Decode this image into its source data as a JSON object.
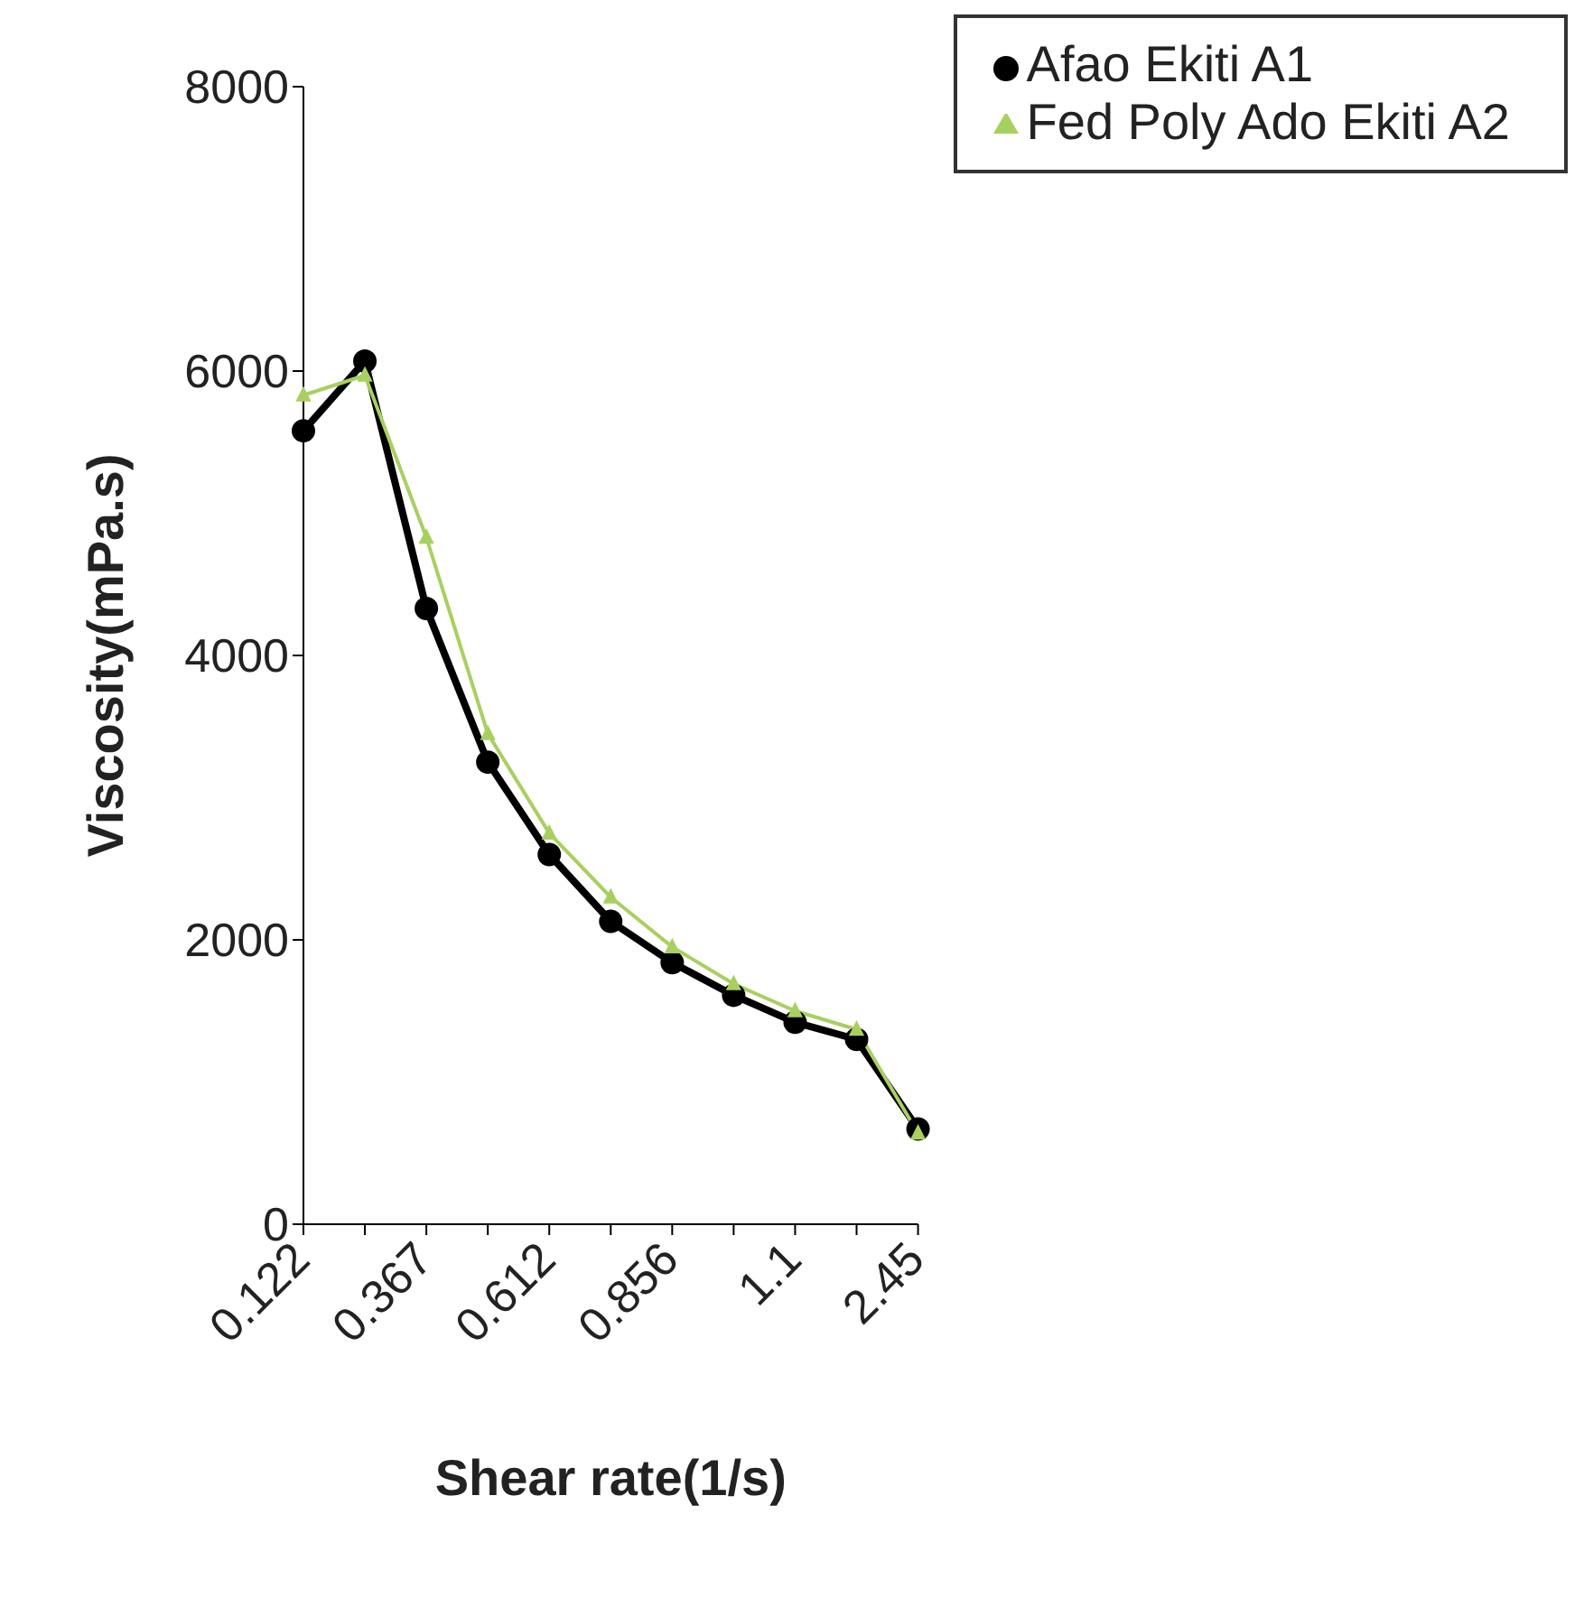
{
  "chart_data": {
    "type": "line",
    "xlabel": "Shear rate(1/s)",
    "ylabel": "Viscosity(mPa.s)",
    "categories": [
      "0.122",
      null,
      "0.367",
      null,
      "0.612",
      null,
      "0.856",
      null,
      "1.1",
      null,
      "2.45"
    ],
    "series": [
      {
        "name": "Afao Ekiti A1",
        "color": "#000000",
        "marker": "circle",
        "values": [
          5580,
          6070,
          4330,
          3250,
          2600,
          2130,
          1840,
          1610,
          1420,
          1300,
          670
        ]
      },
      {
        "name": "Fed Poly Ado Ekiti A2",
        "color": "#a8d060",
        "marker": "triangle",
        "values": [
          5830,
          5970,
          4830,
          3450,
          2750,
          2300,
          1950,
          1690,
          1500,
          1370,
          640
        ]
      }
    ],
    "ylim": [
      0,
      8000
    ],
    "yticks": [
      0,
      2000,
      4000,
      6000,
      8000
    ],
    "legend": "top right",
    "grid": false
  }
}
